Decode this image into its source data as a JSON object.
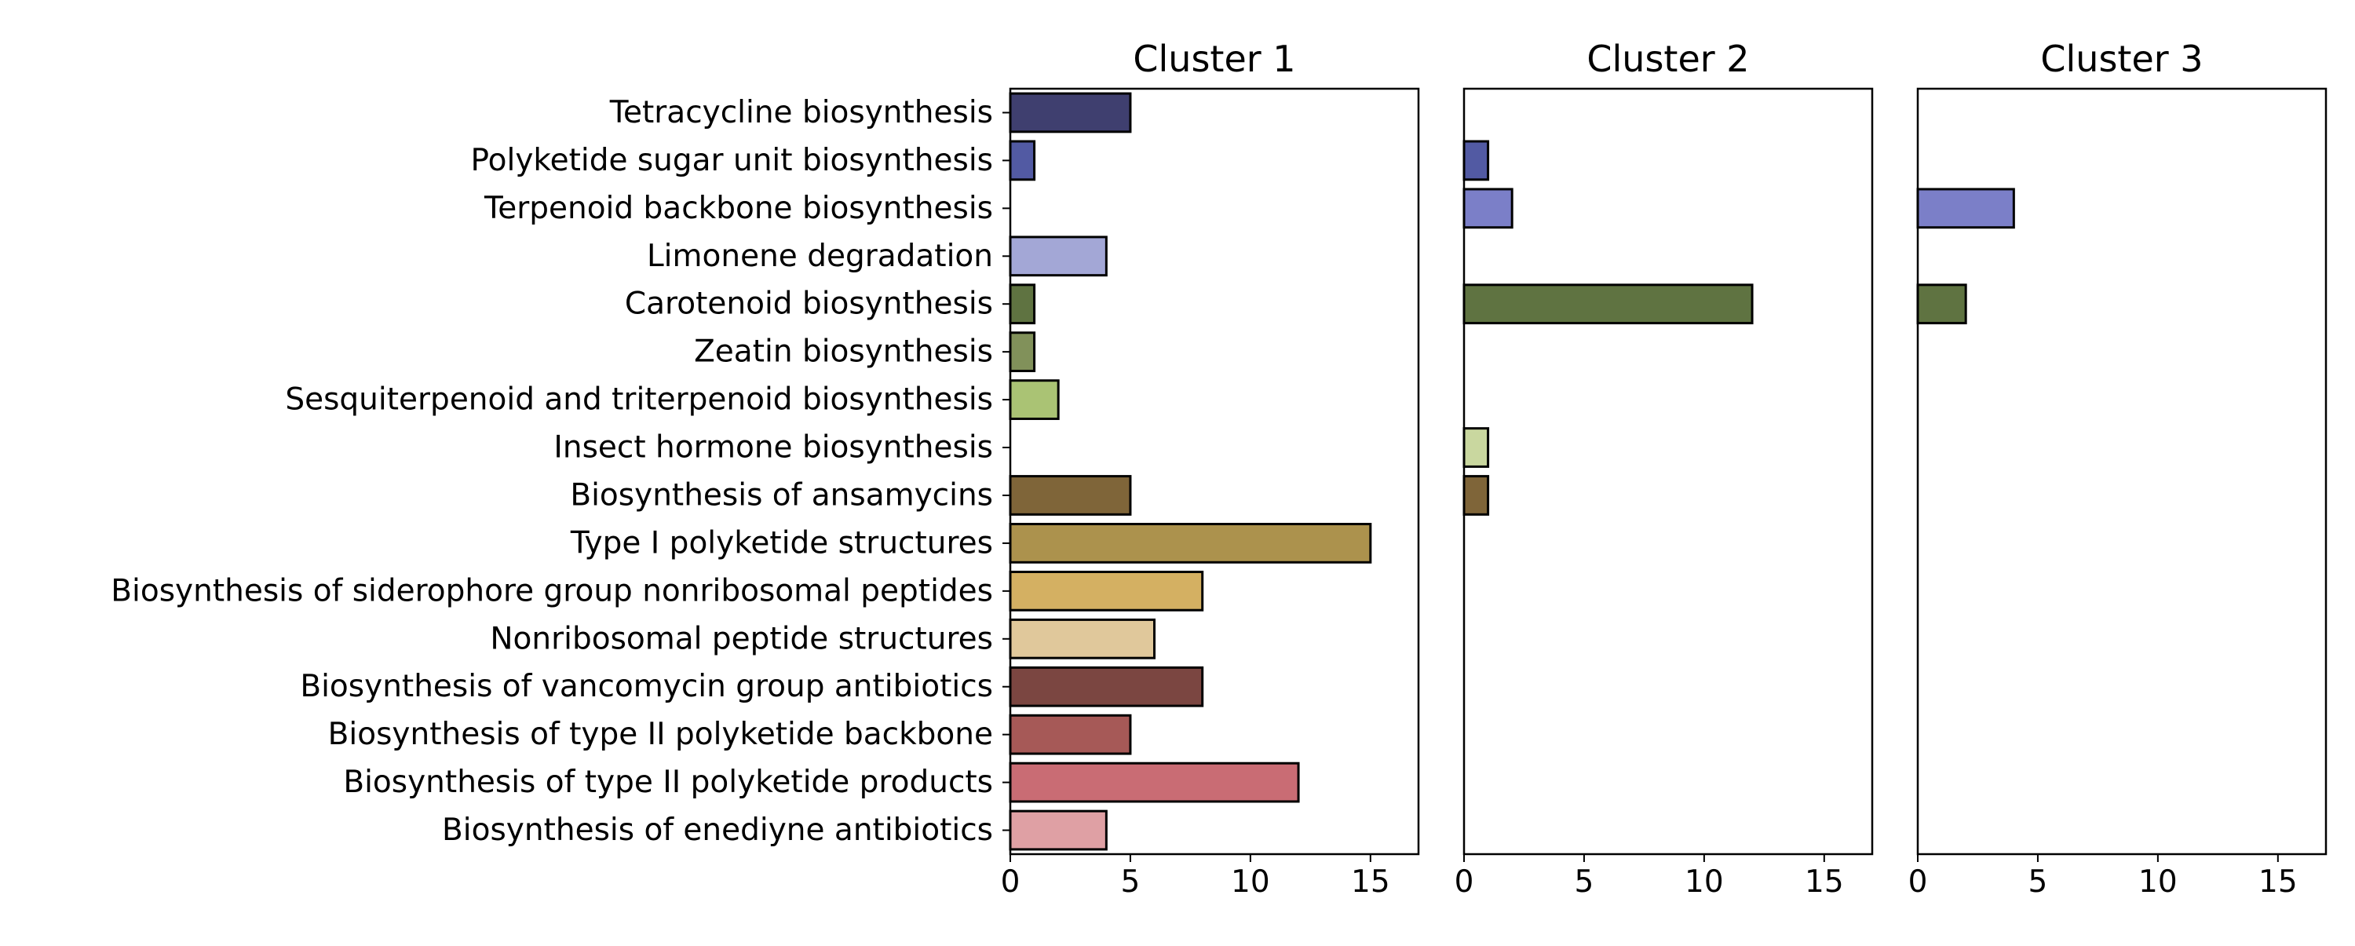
{
  "chart_data": {
    "type": "bar",
    "orientation": "horizontal",
    "categories": [
      "Tetracycline biosynthesis",
      "Polyketide sugar unit biosynthesis",
      "Terpenoid backbone biosynthesis",
      "Limonene degradation",
      "Carotenoid biosynthesis",
      "Zeatin biosynthesis",
      "Sesquiterpenoid and triterpenoid biosynthesis",
      "Insect hormone biosynthesis",
      "Biosynthesis of ansamycins",
      "Type I polyketide structures",
      "Biosynthesis of siderophore group nonribosomal peptides",
      "Nonribosomal peptide structures",
      "Biosynthesis of vancomycin group antibiotics",
      "Biosynthesis of type II polyketide backbone",
      "Biosynthesis of type II polyketide products",
      "Biosynthesis of enediyne antibiotics"
    ],
    "colors": [
      "#3f3f6f",
      "#525aa3",
      "#7b7fc8",
      "#a3a7d6",
      "#5f7341",
      "#81915a",
      "#aac374",
      "#c9d79f",
      "#7f6539",
      "#ac924d",
      "#d4b062",
      "#e0c89b",
      "#7b4641",
      "#a65957",
      "#c96c74",
      "#dfa0a4"
    ],
    "panels": [
      {
        "title": "Cluster 1",
        "values": [
          5,
          1,
          0,
          4,
          1,
          1,
          2,
          0,
          5,
          15,
          8,
          6,
          8,
          5,
          12,
          4
        ]
      },
      {
        "title": "Cluster 2",
        "values": [
          0,
          1,
          2,
          0,
          12,
          0,
          0,
          1,
          1,
          0,
          0,
          0,
          0,
          0,
          0,
          0
        ]
      },
      {
        "title": "Cluster 3",
        "values": [
          0,
          0,
          4,
          0,
          2,
          0,
          0,
          0,
          0,
          0,
          0,
          0,
          0,
          0,
          0,
          0
        ]
      }
    ],
    "xlim": [
      0,
      17
    ],
    "xticks": [
      0,
      5,
      10,
      15
    ],
    "grid": false,
    "legend": "none"
  }
}
